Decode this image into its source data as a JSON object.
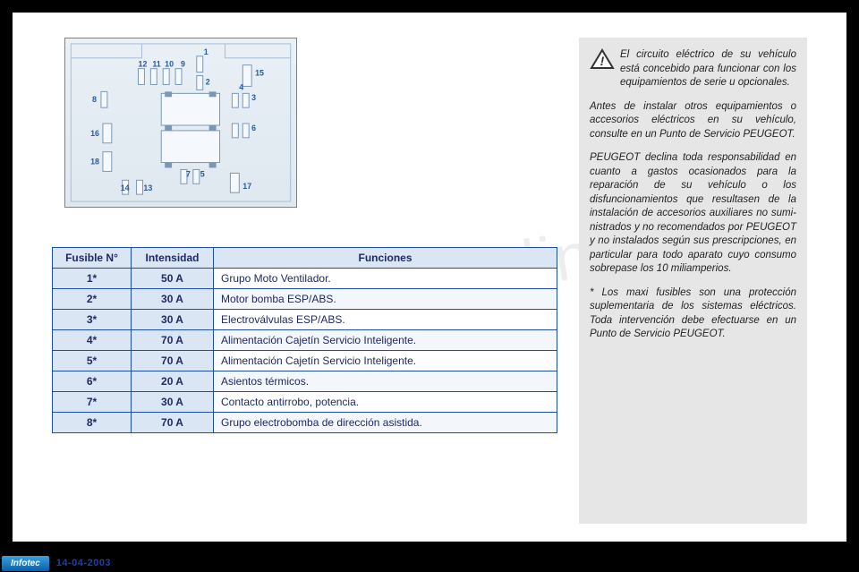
{
  "watermark": "carmanualsonline.info",
  "footer": {
    "brand": "Infotec",
    "date": "14-04-2003"
  },
  "diagram": {
    "background_top": "#e9f0f6",
    "background_bottom": "#dfe8f0",
    "box_stroke": "#7a97b8",
    "box_fill": "#f5f9fd",
    "label_color": "#2a5aa0",
    "label_fontsize": 8,
    "labels": [
      "1",
      "2",
      "3",
      "4",
      "5",
      "6",
      "7",
      "8",
      "9",
      "10",
      "11",
      "12",
      "13",
      "14",
      "15",
      "16",
      "17",
      "18"
    ]
  },
  "table": {
    "headers": {
      "col1": "Fusible N°",
      "col2": "Intensidad",
      "col3": "Funciones"
    },
    "header_bg": "#dbe6f5",
    "border_color": "#1e4ea0",
    "text_color": "#1e2a66",
    "rows": [
      {
        "n": "1*",
        "amp": "50 A",
        "func": "Grupo Moto Ventilador."
      },
      {
        "n": "2*",
        "amp": "30 A",
        "func": "Motor bomba ESP/ABS."
      },
      {
        "n": "3*",
        "amp": "30 A",
        "func": "Electroválvulas ESP/ABS."
      },
      {
        "n": "4*",
        "amp": "70 A",
        "func": "Alimentación Cajetín Servicio Inteligente."
      },
      {
        "n": "5*",
        "amp": "70 A",
        "func": "Alimentación Cajetín Servicio Inteligente."
      },
      {
        "n": "6*",
        "amp": "20 A",
        "func": "Asientos térmicos."
      },
      {
        "n": "7*",
        "amp": "30 A",
        "func": "Contacto antirrobo, potencia."
      },
      {
        "n": "8*",
        "amp": "70 A",
        "func": "Grupo electrobomba de dirección asistida."
      }
    ]
  },
  "sidebar": {
    "bg": "#e6e6e6",
    "warn_triangle_stroke": "#333333",
    "warn_triangle_fill": "#ffffff",
    "p1": "El circuito eléctrico de su vehículo está concebido para funcionar con los equipamientos de serie u opcionales.",
    "p2": "Antes de instalar otros equipa­mientos o accesorios eléctricos en su vehículo, consulte en un Punto de Servicio PEUGEOT.",
    "p3": "PEUGEOT declina toda respon­sabilidad en cuanto a gastos oca­sionados para la reparación de su vehículo o los disfuncionamientos que resultasen de la instalación de accesorios auxiliares no sumi­nistrados y no recomendados por PEUGEOT y no instalados según sus prescripciones, en particular para todo aparato cuyo consumo sobrepase los 10 miliamperios.",
    "p4": "* Los maxi fusibles son una pro­tección suplementaria de los sis­temas eléctricos. Toda interven­ción debe efectuarse en un Punto de Servicio PEUGEOT."
  }
}
